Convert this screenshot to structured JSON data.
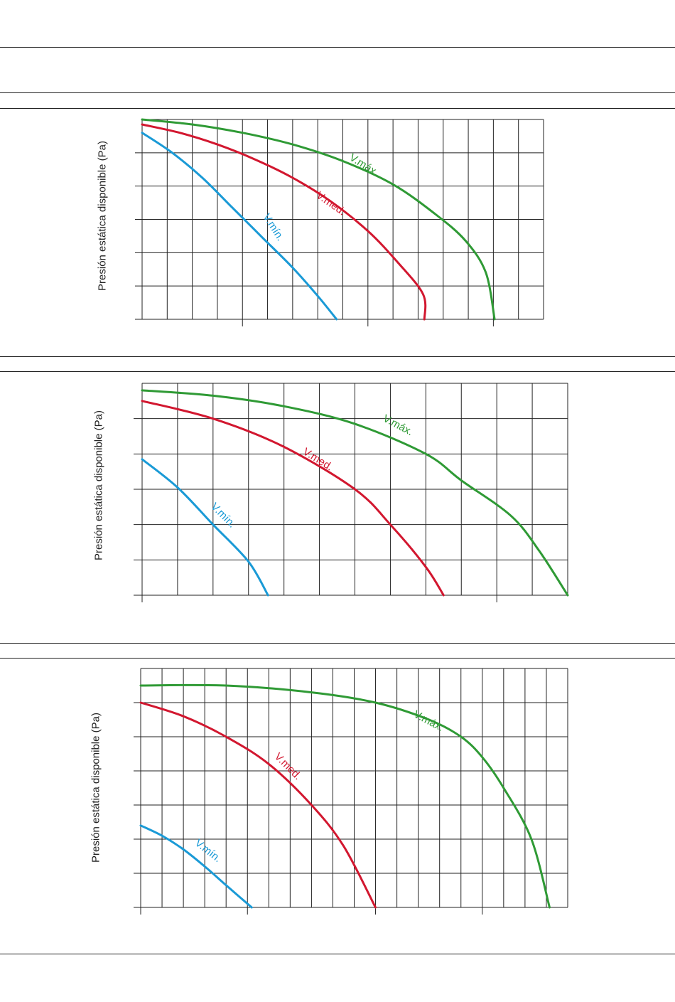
{
  "colors": {
    "min": "#1a9ad6",
    "med": "#d2172f",
    "max": "#2f9a35",
    "grid": "#222222",
    "rule": "#222222"
  },
  "chart_data": [
    {
      "type": "line",
      "ylabel": "Presión estática disponible (Pa)",
      "grid": true,
      "x_range": [
        0,
        16
      ],
      "y_range": [
        0,
        6
      ],
      "x_tick_marks": [
        4,
        9,
        14
      ],
      "series": [
        {
          "name": "V.mín.",
          "color": "#1a9ad6",
          "points": [
            [
              0,
              5.6
            ],
            [
              1.2,
              5.0
            ],
            [
              2.4,
              4.25
            ],
            [
              3.6,
              3.35
            ],
            [
              4.8,
              2.45
            ],
            [
              6.0,
              1.55
            ],
            [
              7.0,
              0.7
            ],
            [
              7.75,
              0
            ]
          ]
        },
        {
          "name": "V.med.",
          "color": "#d2172f",
          "points": [
            [
              0,
              5.85
            ],
            [
              1.5,
              5.6
            ],
            [
              3.0,
              5.25
            ],
            [
              4.5,
              4.8
            ],
            [
              6.0,
              4.25
            ],
            [
              7.5,
              3.55
            ],
            [
              9.0,
              2.65
            ],
            [
              10.2,
              1.7
            ],
            [
              11.2,
              0.75
            ],
            [
              11.25,
              0
            ]
          ]
        },
        {
          "name": "V.máx.",
          "color": "#2f9a35",
          "points": [
            [
              0,
              6.0
            ],
            [
              2.0,
              5.85
            ],
            [
              4.0,
              5.6
            ],
            [
              6.0,
              5.25
            ],
            [
              8.0,
              4.75
            ],
            [
              10.0,
              4.05
            ],
            [
              11.7,
              3.15
            ],
            [
              12.9,
              2.35
            ],
            [
              13.7,
              1.4
            ],
            [
              14.05,
              0
            ]
          ]
        }
      ]
    },
    {
      "type": "line",
      "ylabel": "Presión estática disponible (Pa)",
      "grid": true,
      "x_range": [
        0,
        12
      ],
      "y_range": [
        0,
        6
      ],
      "x_tick_marks": [
        0,
        10
      ],
      "series": [
        {
          "name": "V.mín.",
          "color": "#1a9ad6",
          "points": [
            [
              0,
              3.85
            ],
            [
              1.0,
              3.05
            ],
            [
              2.0,
              2.0
            ],
            [
              3.0,
              0.95
            ],
            [
              3.55,
              0
            ]
          ]
        },
        {
          "name": "V.med.",
          "color": "#d2172f",
          "points": [
            [
              0,
              5.5
            ],
            [
              2.0,
              5.0
            ],
            [
              4.0,
              4.2
            ],
            [
              6.0,
              3.0
            ],
            [
              7.0,
              2.0
            ],
            [
              8.0,
              0.8
            ],
            [
              8.5,
              0
            ]
          ]
        },
        {
          "name": "V.máx.",
          "color": "#2f9a35",
          "points": [
            [
              0,
              5.8
            ],
            [
              2.0,
              5.65
            ],
            [
              4.0,
              5.35
            ],
            [
              6.0,
              4.85
            ],
            [
              8.0,
              4.0
            ],
            [
              9.0,
              3.25
            ],
            [
              10.4,
              2.25
            ],
            [
              11.2,
              1.25
            ],
            [
              12.0,
              0
            ]
          ]
        }
      ]
    },
    {
      "type": "line",
      "ylabel": "Presión estática disponible (Pa)",
      "grid": true,
      "x_range": [
        0,
        20
      ],
      "y_range": [
        0,
        7
      ],
      "x_tick_marks": [
        0,
        5,
        11,
        16
      ],
      "series": [
        {
          "name": "V.mín.",
          "color": "#1a9ad6",
          "points": [
            [
              0,
              2.4
            ],
            [
              1.0,
              2.1
            ],
            [
              2.0,
              1.7
            ],
            [
              3.0,
              1.2
            ],
            [
              4.0,
              0.65
            ],
            [
              5.2,
              0
            ]
          ]
        },
        {
          "name": "V.med.",
          "color": "#d2172f",
          "points": [
            [
              0,
              6.0
            ],
            [
              2.0,
              5.6
            ],
            [
              4.0,
              5.0
            ],
            [
              6.0,
              4.2
            ],
            [
              8.0,
              3.0
            ],
            [
              9.5,
              1.8
            ],
            [
              11.0,
              0
            ]
          ]
        },
        {
          "name": "V.máx.",
          "color": "#2f9a35",
          "points": [
            [
              0,
              6.5
            ],
            [
              4.0,
              6.5
            ],
            [
              8.0,
              6.3
            ],
            [
              11.0,
              6.0
            ],
            [
              13.5,
              5.5
            ],
            [
              15.0,
              5.0
            ],
            [
              16.0,
              4.4
            ],
            [
              17.0,
              3.5
            ],
            [
              18.3,
              2.0
            ],
            [
              19.15,
              0
            ]
          ]
        }
      ]
    }
  ]
}
